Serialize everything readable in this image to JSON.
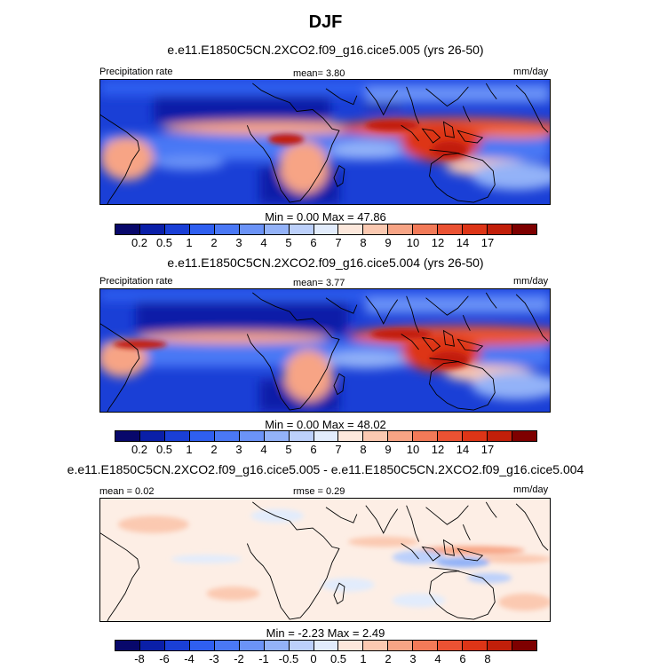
{
  "season": "DJF",
  "colors": {
    "precip": [
      "#08086b",
      "#0a1fa8",
      "#1a3fd6",
      "#2f5ff0",
      "#4a78f5",
      "#6b93f7",
      "#93b2f8",
      "#bcd0fb",
      "#e2ecfc",
      "#fde8dc",
      "#fbc9b1",
      "#f7a485",
      "#f27a58",
      "#eb5233",
      "#dd3517",
      "#c21f0a",
      "#7e0000"
    ],
    "diff": [
      "#08086b",
      "#0a1fa8",
      "#1a3fd6",
      "#2f5ff0",
      "#4a78f5",
      "#6b93f7",
      "#93b2f8",
      "#bcd0fb",
      "#e2ecfc",
      "#fde8dc",
      "#fbc9b1",
      "#f7a485",
      "#f27a58",
      "#eb5233",
      "#dd3517",
      "#c21f0a",
      "#7e0000"
    ]
  },
  "panels": [
    {
      "title": "e.e11.E1850C5CN.2XCO2.f09_g16.cice5.005 (yrs 26-50)",
      "left_label": "Precipitation rate",
      "center_label": "mean=   3.80",
      "right_label": "mm/day",
      "minmax": "Min =   0.00 Max =  47.86",
      "ticks": [
        "0.2",
        "0.5",
        "1",
        "2",
        "3",
        "4",
        "5",
        "6",
        "7",
        "8",
        "9",
        "10",
        "12",
        "14",
        "17"
      ]
    },
    {
      "title": "e.e11.E1850C5CN.2XCO2.f09_g16.cice5.004 (yrs 26-50)",
      "left_label": "Precipitation rate",
      "center_label": "mean=   3.77",
      "right_label": "mm/day",
      "minmax": "Min =   0.00 Max =  48.02",
      "ticks": [
        "0.2",
        "0.5",
        "1",
        "2",
        "3",
        "4",
        "5",
        "6",
        "7",
        "8",
        "9",
        "10",
        "12",
        "14",
        "17"
      ]
    },
    {
      "title": "e.e11.E1850C5CN.2XCO2.f09_g16.cice5.005 - e.e11.E1850C5CN.2XCO2.f09_g16.cice5.004",
      "left_label": "mean =   0.02",
      "center_label": "rmse =   0.29",
      "right_label": "mm/day",
      "minmax": "Min =  -2.23 Max =   2.49",
      "ticks": [
        "-8",
        "-6",
        "-4",
        "-3",
        "-2",
        "-1",
        "-0.5",
        "0",
        "0.5",
        "1",
        "2",
        "3",
        "4",
        "6",
        "8"
      ]
    }
  ]
}
